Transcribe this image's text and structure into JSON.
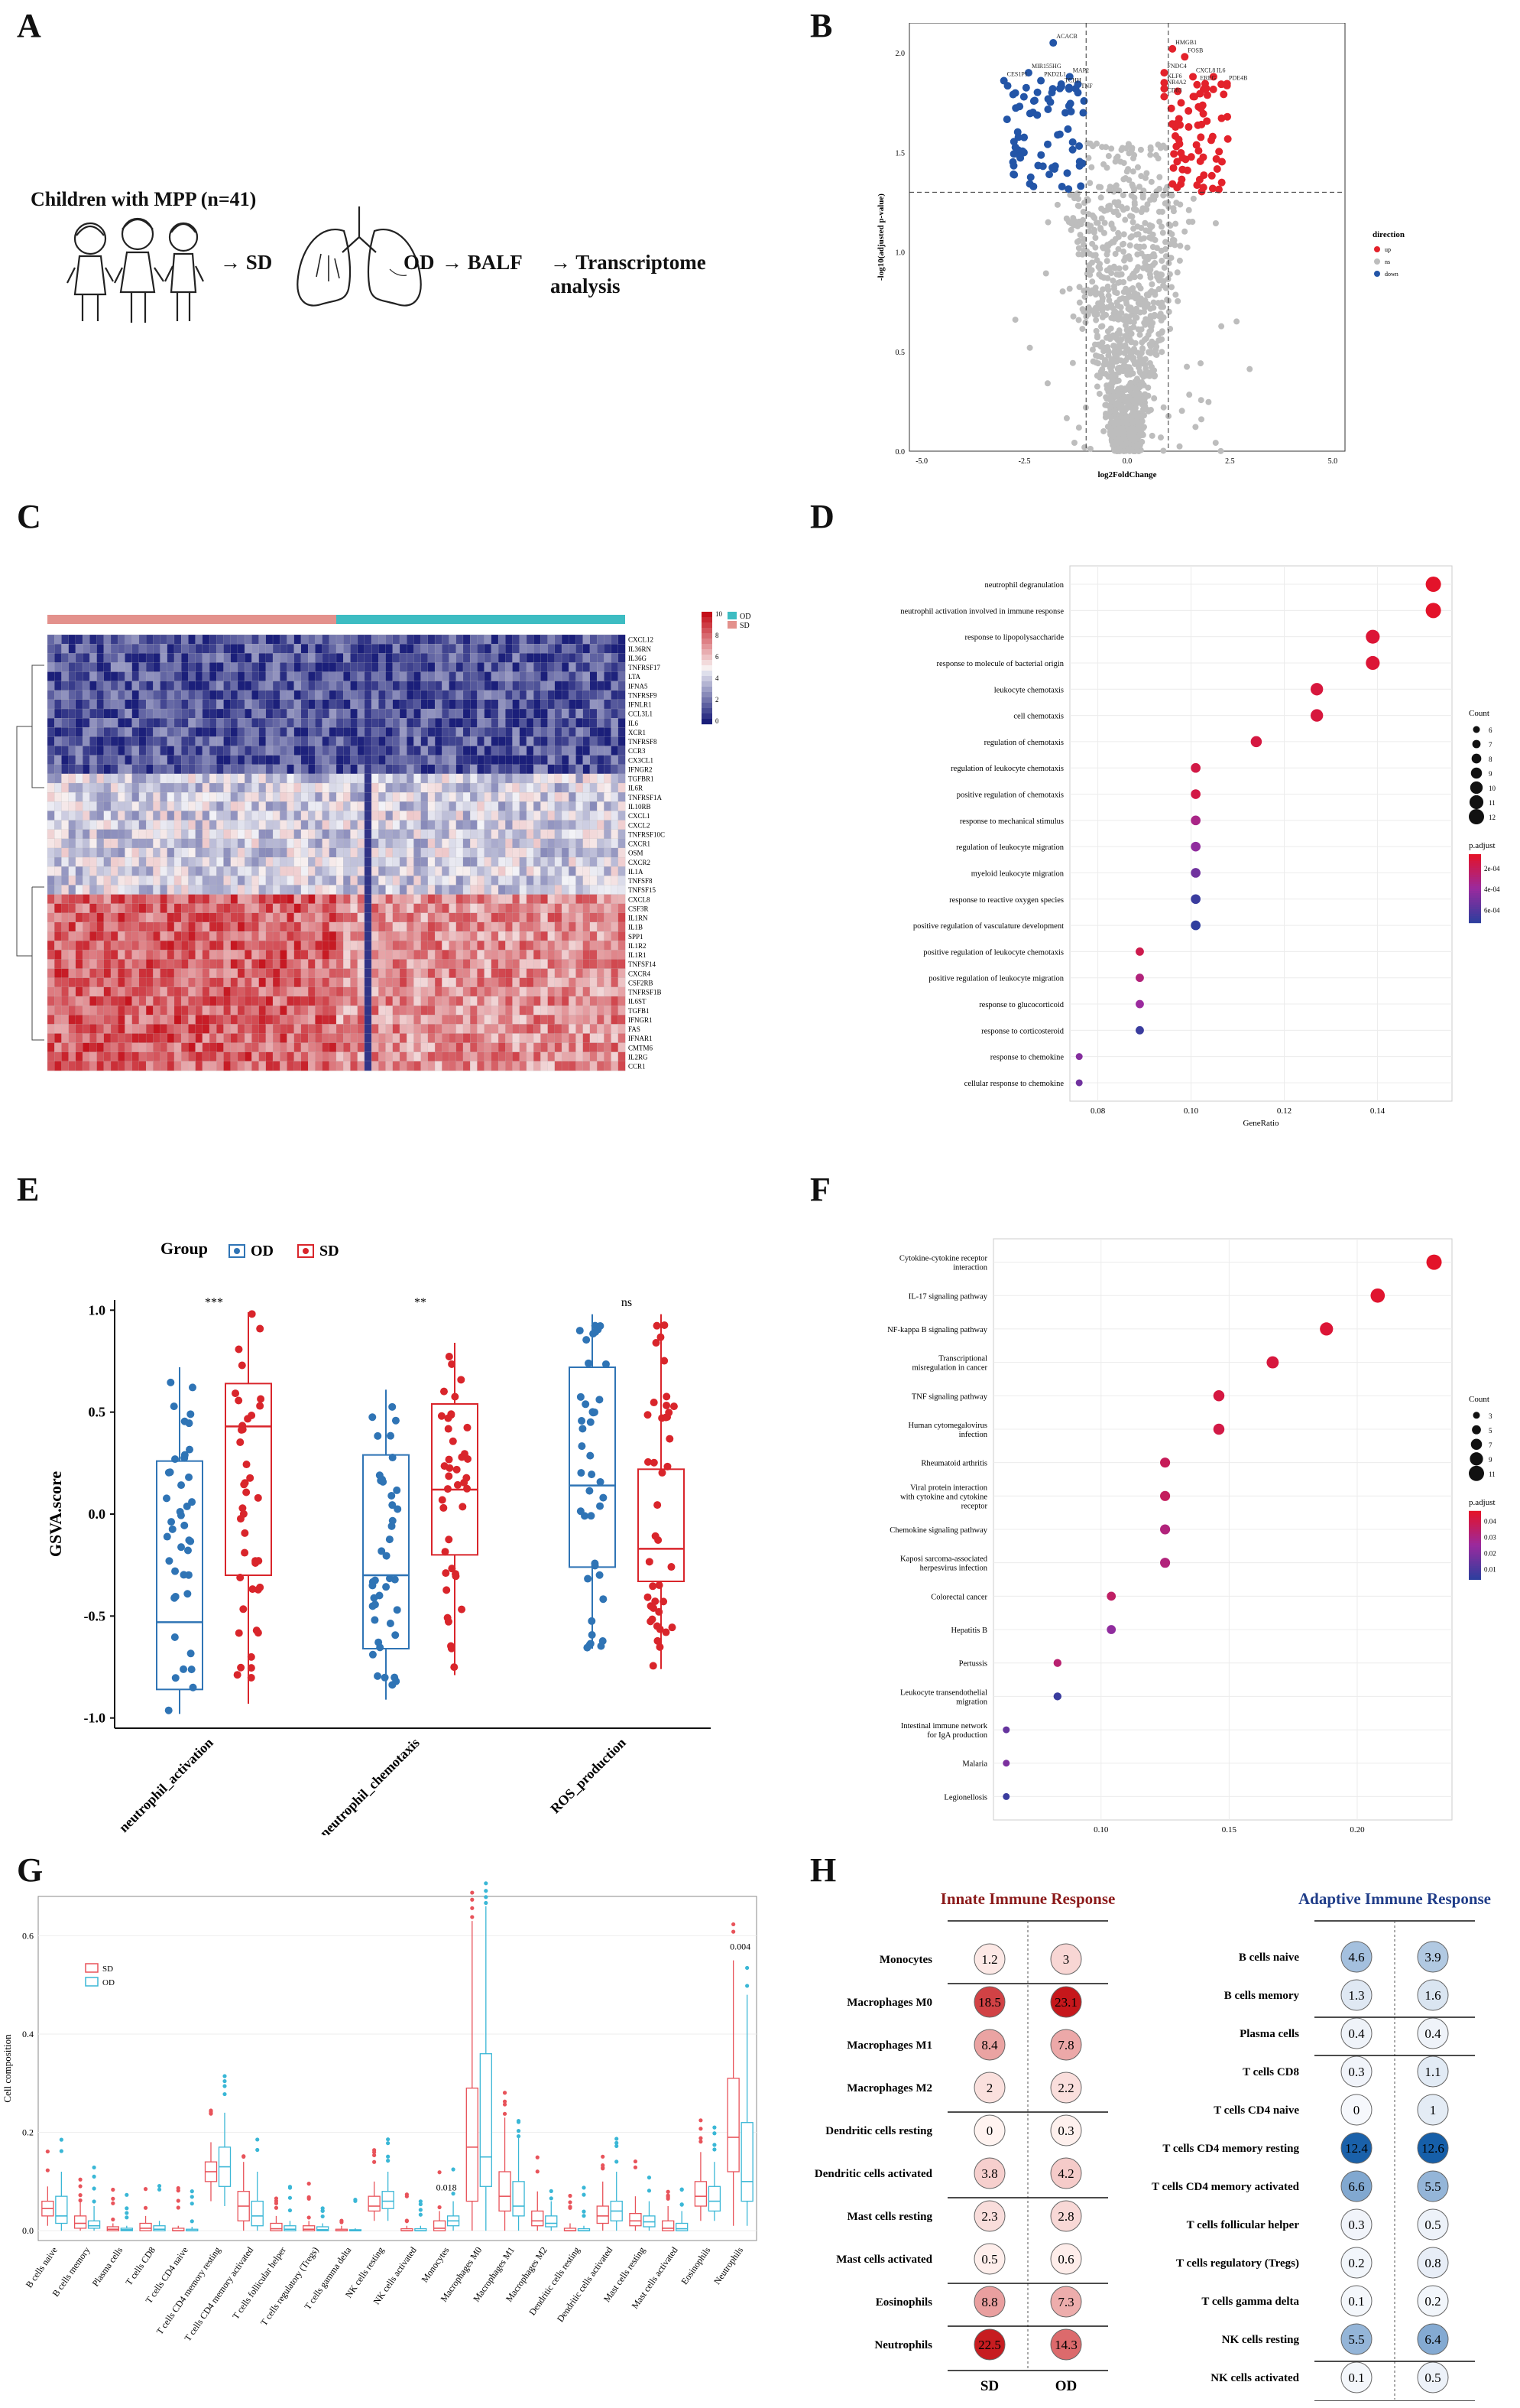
{
  "colors": {
    "up": "#e3222b",
    "down": "#2355a7",
    "ns": "#bdbdbd",
    "sd": "#d9252b",
    "od": "#2f74b5",
    "sd_box": "#e8535a",
    "od_box": "#3ab7d6",
    "innate_title": "#8b1a1a",
    "adaptive_title": "#1f3c88"
  },
  "panels": {
    "A": {
      "label": "A",
      "cohort": "Children with MPP (n=41)",
      "arrow_sd": "→ SD",
      "od": "OD",
      "arrow_balf": "→ BALF",
      "arrow_ta": "→ Transcriptome analysis"
    },
    "B": {
      "label": "B"
    },
    "C": {
      "label": "C"
    },
    "D": {
      "label": "D"
    },
    "E": {
      "label": "E"
    },
    "F": {
      "label": "F"
    },
    "G": {
      "label": "G"
    },
    "H": {
      "label": "H"
    }
  },
  "chart_data": [
    {
      "id": "B",
      "type": "scatter",
      "title": "",
      "xlabel": "log2FoldChange",
      "ylabel": "-log10(adjusted p-value)",
      "xlim": [
        -5.3,
        5.3
      ],
      "ylim": [
        0,
        2.15
      ],
      "xticks": [
        "-5.0",
        "-2.5",
        "0.0",
        "2.5",
        "5.0"
      ],
      "yticks": [
        "0.0",
        "0.5",
        "1.0",
        "1.5",
        "2.0"
      ],
      "thresholds": {
        "x": [
          -1,
          1
        ],
        "y": 1.3
      },
      "legend": {
        "title": "direction",
        "items": [
          "up",
          "ns",
          "down"
        ]
      },
      "labeled_points": [
        {
          "label": "ACACB",
          "x": -1.8,
          "y": 2.05,
          "dir": "down"
        },
        {
          "label": "MIR155HG",
          "x": -2.4,
          "y": 1.9,
          "dir": "down"
        },
        {
          "label": "CES1P1",
          "x": -3.0,
          "y": 1.86,
          "dir": "down"
        },
        {
          "label": "PKD2L1",
          "x": -2.1,
          "y": 1.86,
          "dir": "down"
        },
        {
          "label": "MAP2",
          "x": -1.4,
          "y": 1.88,
          "dir": "down"
        },
        {
          "label": "TCHH",
          "x": -1.6,
          "y": 1.83,
          "dir": "down"
        },
        {
          "label": "TNF",
          "x": -1.2,
          "y": 1.8,
          "dir": "down"
        },
        {
          "label": "FOSB",
          "x": 1.4,
          "y": 1.98,
          "dir": "up"
        },
        {
          "label": "HMGB1",
          "x": 1.1,
          "y": 2.02,
          "dir": "up"
        },
        {
          "label": "FNDC4",
          "x": 0.9,
          "y": 1.9,
          "dir": "up"
        },
        {
          "label": "CXCL8",
          "x": 1.6,
          "y": 1.88,
          "dir": "up"
        },
        {
          "label": "IL6",
          "x": 2.1,
          "y": 1.88,
          "dir": "up"
        },
        {
          "label": "KLF6",
          "x": 0.9,
          "y": 1.85,
          "dir": "up"
        },
        {
          "label": "EREG",
          "x": 1.7,
          "y": 1.84,
          "dir": "up"
        },
        {
          "label": "PDE4B",
          "x": 2.4,
          "y": 1.84,
          "dir": "up"
        },
        {
          "label": "NR4A2",
          "x": 0.9,
          "y": 1.82,
          "dir": "up"
        },
        {
          "label": "CD83",
          "x": 0.9,
          "y": 1.78,
          "dir": "up"
        }
      ]
    },
    {
      "id": "C",
      "type": "heatmap",
      "title": "",
      "genes": [
        "CXCL12",
        "IL36RN",
        "IL36G",
        "TNFRSF17",
        "LTA",
        "IFNA5",
        "TNFRSF9",
        "IFNLR1",
        "CCL3L1",
        "IL6",
        "XCR1",
        "TNFRSF8",
        "CCR3",
        "CX3CL1",
        "IFNGR2",
        "TGFBR1",
        "IL6R",
        "TNFRSF1A",
        "IL10RB",
        "CXCL1",
        "CXCL2",
        "TNFRSF10C",
        "CXCR1",
        "OSM",
        "CXCR2",
        "IL1A",
        "TNFSF8",
        "TNFSF15",
        "CXCL8",
        "CSF3R",
        "IL1RN",
        "IL1B",
        "SPP1",
        "IL1R2",
        "IL1R1",
        "TNFSF14",
        "CXCR4",
        "CSF2RB",
        "TNFRSF1B",
        "IL6ST",
        "TGFB1",
        "IFNGR1",
        "FAS",
        "IFNAR1",
        "CMTM6",
        "IL2RG",
        "CCR1"
      ],
      "groups": [
        "OD",
        "SD"
      ],
      "scale": {
        "min": 0,
        "max": 10,
        "ticks": [
          "10",
          "8",
          "6",
          "4",
          "2",
          "0"
        ]
      }
    },
    {
      "id": "D",
      "type": "scatter",
      "title": "",
      "xlabel": "GeneRatio",
      "ylabel": "",
      "xlim": [
        0.074,
        0.156
      ],
      "xticks": [
        "0.08",
        "0.10",
        "0.12",
        "0.14"
      ],
      "terms": [
        "neutrophil degranulation",
        "neutrophil activation involved in immune response",
        "response to lipopolysaccharide",
        "response to molecule of bacterial origin",
        "leukocyte chemotaxis",
        "cell chemotaxis",
        "regulation of chemotaxis",
        "regulation of leukocyte chemotaxis",
        "positive regulation of chemotaxis",
        "response to mechanical stimulus",
        "regulation of leukocyte migration",
        "myeloid leukocyte migration",
        "response to reactive oxygen species",
        "positive regulation of vasculature development",
        "positive regulation of leukocyte chemotaxis",
        "positive regulation of leukocyte migration",
        "response to glucocorticoid",
        "response to corticosteroid",
        "response to chemokine",
        "cellular response to chemokine"
      ],
      "gene_ratio": [
        0.152,
        0.152,
        0.139,
        0.139,
        0.127,
        0.127,
        0.114,
        0.101,
        0.101,
        0.101,
        0.101,
        0.101,
        0.101,
        0.101,
        0.089,
        0.089,
        0.089,
        0.089,
        0.076,
        0.076
      ],
      "count": [
        12,
        12,
        11,
        11,
        10,
        10,
        9,
        8,
        8,
        8,
        8,
        8,
        8,
        8,
        7,
        7,
        7,
        7,
        6,
        6
      ],
      "p_adjust_rank": [
        0.0,
        0.0,
        0.05,
        0.05,
        0.08,
        0.08,
        0.1,
        0.12,
        0.12,
        0.4,
        0.55,
        0.7,
        0.95,
        1.0,
        0.15,
        0.35,
        0.5,
        0.95,
        0.6,
        0.7
      ],
      "legend_count": {
        "title": "Count",
        "items": [
          "6",
          "7",
          "8",
          "9",
          "10",
          "11",
          "12"
        ]
      },
      "legend_padj": {
        "title": "p.adjust",
        "ticks": [
          "2e-04",
          "4e-04",
          "6e-04"
        ]
      }
    },
    {
      "id": "E",
      "type": "box",
      "title": "",
      "ylabel": "GSVA.score",
      "legend_title": "Group",
      "groups": [
        "OD",
        "SD"
      ],
      "categories": [
        "neutrophil_activation",
        "neutrophil_chemotaxis",
        "ROS_production"
      ],
      "significance": [
        "***",
        "**",
        "ns"
      ],
      "ylim": [
        -1.05,
        1.05
      ],
      "yticks": [
        "1.0",
        "0.5",
        "0.0",
        "-0.5",
        "-1.0"
      ],
      "series": [
        {
          "name": "OD",
          "stats": [
            {
              "min": -0.98,
              "q1": -0.86,
              "median": -0.53,
              "q3": 0.26,
              "max": 0.72
            },
            {
              "min": -0.91,
              "q1": -0.66,
              "median": -0.3,
              "q3": 0.29,
              "max": 0.61
            },
            {
              "min": -0.66,
              "q1": -0.26,
              "median": 0.14,
              "q3": 0.72,
              "max": 0.98
            }
          ]
        },
        {
          "name": "SD",
          "stats": [
            {
              "min": -0.93,
              "q1": -0.3,
              "median": 0.43,
              "q3": 0.64,
              "max": 0.99
            },
            {
              "min": -0.79,
              "q1": -0.2,
              "median": 0.12,
              "q3": 0.54,
              "max": 0.84
            },
            {
              "min": -0.76,
              "q1": -0.33,
              "median": -0.17,
              "q3": 0.22,
              "max": 0.98
            }
          ]
        }
      ]
    },
    {
      "id": "F",
      "type": "scatter",
      "title": "",
      "xlabel": "GeneRatio",
      "xlim": [
        0.058,
        0.237
      ],
      "xticks": [
        "0.10",
        "0.15",
        "0.20"
      ],
      "terms": [
        "Cytokine-cytokine receptor|interaction",
        "IL-17 signaling pathway",
        "NF-kappa B signaling pathway",
        "Transcriptional|misregulation in cancer",
        "TNF signaling pathway",
        "Human cytomegalovirus|infection",
        "Rheumatoid arthritis",
        "Viral protein interaction|with cytokine and cytokine|receptor",
        "Chemokine signaling pathway",
        "Kaposi sarcoma-associated|herpesvirus infection",
        "Colorectal cancer",
        "Hepatitis B",
        "Pertussis",
        "Leukocyte transendothelial|migration",
        "Intestinal immune network|for IgA production",
        "Malaria",
        "Legionellosis"
      ],
      "gene_ratio": [
        0.23,
        0.208,
        0.188,
        0.167,
        0.146,
        0.146,
        0.125,
        0.125,
        0.125,
        0.125,
        0.104,
        0.104,
        0.083,
        0.083,
        0.063,
        0.063,
        0.063
      ],
      "count": [
        11,
        10,
        9,
        8,
        7,
        7,
        6,
        6,
        6,
        6,
        5,
        5,
        4,
        4,
        3,
        3,
        3
      ],
      "p_adjust_rank": [
        0.0,
        0.02,
        0.05,
        0.08,
        0.1,
        0.12,
        0.2,
        0.22,
        0.35,
        0.35,
        0.25,
        0.55,
        0.3,
        0.95,
        0.75,
        0.65,
        0.95
      ],
      "legend_count": {
        "title": "Count",
        "items": [
          "3",
          "5",
          "7",
          "9",
          "11"
        ]
      },
      "legend_padj": {
        "title": "p.adjust",
        "ticks": [
          "0.04",
          "0.03",
          "0.02",
          "0.01"
        ]
      }
    },
    {
      "id": "G",
      "type": "box",
      "title": "",
      "ylabel": "Cell composition",
      "ylim": [
        -0.02,
        0.68
      ],
      "yticks": [
        "0.6",
        "0.4",
        "0.2",
        "0.0"
      ],
      "legend": [
        "SD",
        "OD"
      ],
      "categories": [
        "B cells naive",
        "B cells memory",
        "Plasma cells",
        "T cells CD8",
        "T cells CD4 naive",
        "T cells CD4 memory resting",
        "T cells CD4 memory activated",
        "T cells follicular helper",
        "T cells regulatory (Tregs)",
        "T cells gamma delta",
        "NK cells resting",
        "NK cells activated",
        "Monocytes",
        "Macrophages M0",
        "Macrophages M1",
        "Macrophages M2",
        "Dendritic cells resting",
        "Dendritic cells activated",
        "Mast cells resting",
        "Mast cells activated",
        "Eosinophils",
        "Neutrophils"
      ],
      "annotations": [
        {
          "category": "Monocytes",
          "text": "0.018"
        },
        {
          "category": "Neutrophils",
          "text": "0.004"
        }
      ],
      "series": [
        {
          "name": "SD",
          "stats": [
            [
              0.01,
              0.03,
              0.045,
              0.06,
              0.09
            ],
            [
              0,
              0.005,
              0.015,
              0.03,
              0.06
            ],
            [
              0,
              0,
              0.003,
              0.008,
              0.015
            ],
            [
              0,
              0,
              0.005,
              0.015,
              0.03
            ],
            [
              0,
              0,
              0,
              0.005,
              0.01
            ],
            [
              0.06,
              0.1,
              0.12,
              0.14,
              0.18
            ],
            [
              0,
              0.02,
              0.05,
              0.08,
              0.14
            ],
            [
              0,
              0,
              0.004,
              0.015,
              0.03
            ],
            [
              0,
              0,
              0.003,
              0.01,
              0.02
            ],
            [
              0,
              0,
              0,
              0.003,
              0.01
            ],
            [
              0.02,
              0.04,
              0.05,
              0.07,
              0.1
            ],
            [
              0,
              0,
              0,
              0.004,
              0.01
            ],
            [
              0,
              0,
              0.005,
              0.02,
              0.04
            ],
            [
              0,
              0.06,
              0.17,
              0.29,
              0.63
            ],
            [
              0,
              0.04,
              0.07,
              0.12,
              0.23
            ],
            [
              0,
              0.01,
              0.02,
              0.04,
              0.08
            ],
            [
              0,
              0,
              0,
              0.005,
              0.015
            ],
            [
              0,
              0.015,
              0.03,
              0.05,
              0.1
            ],
            [
              0,
              0.01,
              0.02,
              0.035,
              0.07
            ],
            [
              0,
              0,
              0.005,
              0.02,
              0.05
            ],
            [
              0.02,
              0.05,
              0.07,
              0.1,
              0.16
            ],
            [
              0.01,
              0.12,
              0.19,
              0.31,
              0.55
            ]
          ]
        },
        {
          "name": "OD",
          "stats": [
            [
              0,
              0.015,
              0.03,
              0.07,
              0.12
            ],
            [
              0,
              0.005,
              0.01,
              0.02,
              0.05
            ],
            [
              0,
              0,
              0.002,
              0.005,
              0.01
            ],
            [
              0,
              0,
              0.003,
              0.01,
              0.02
            ],
            [
              0,
              0,
              0,
              0.003,
              0.008
            ],
            [
              0.05,
              0.09,
              0.13,
              0.17,
              0.24
            ],
            [
              0,
              0.01,
              0.03,
              0.06,
              0.12
            ],
            [
              0,
              0,
              0.003,
              0.01,
              0.02
            ],
            [
              0,
              0,
              0.002,
              0.008,
              0.015
            ],
            [
              0,
              0,
              0,
              0.002,
              0.005
            ],
            [
              0.02,
              0.045,
              0.06,
              0.08,
              0.12
            ],
            [
              0,
              0,
              0,
              0.004,
              0.01
            ],
            [
              0,
              0.01,
              0.02,
              0.03,
              0.06
            ],
            [
              0,
              0.09,
              0.15,
              0.36,
              0.66
            ],
            [
              0,
              0.03,
              0.05,
              0.1,
              0.19
            ],
            [
              0,
              0.008,
              0.015,
              0.03,
              0.06
            ],
            [
              0,
              0,
              0,
              0.004,
              0.01
            ],
            [
              0,
              0.02,
              0.04,
              0.06,
              0.12
            ],
            [
              0,
              0.008,
              0.018,
              0.03,
              0.06
            ],
            [
              0,
              0,
              0.004,
              0.015,
              0.04
            ],
            [
              0.02,
              0.04,
              0.06,
              0.09,
              0.14
            ],
            [
              0.01,
              0.06,
              0.1,
              0.22,
              0.48
            ]
          ]
        }
      ]
    }
  ],
  "immune": {
    "innate_title": "Innate Immune Response",
    "adaptive_title": "Adaptive Immune Response",
    "col_labels": [
      "SD",
      "OD"
    ],
    "innate": [
      {
        "name": "Monocytes",
        "sd": "1.2",
        "od": "3"
      },
      {
        "name": "Macrophages M0",
        "sd": "18.5",
        "od": "23.1"
      },
      {
        "name": "Macrophages M1",
        "sd": "8.4",
        "od": "7.8"
      },
      {
        "name": "Macrophages M2",
        "sd": "2",
        "od": "2.2"
      },
      {
        "name": "Dendritic cells resting",
        "sd": "0",
        "od": "0.3"
      },
      {
        "name": "Dendritic cells activated",
        "sd": "3.8",
        "od": "4.2"
      },
      {
        "name": "Mast cells resting",
        "sd": "2.3",
        "od": "2.8"
      },
      {
        "name": "Mast cells activated",
        "sd": "0.5",
        "od": "0.6"
      },
      {
        "name": "Eosinophils",
        "sd": "8.8",
        "od": "7.3"
      },
      {
        "name": "Neutrophils",
        "sd": "22.5",
        "od": "14.3"
      }
    ],
    "adaptive": [
      {
        "name": "B cells naive",
        "sd": "4.6",
        "od": "3.9"
      },
      {
        "name": "B cells memory",
        "sd": "1.3",
        "od": "1.6"
      },
      {
        "name": "Plasma cells",
        "sd": "0.4",
        "od": "0.4"
      },
      {
        "name": "T cells CD8",
        "sd": "0.3",
        "od": "1.1"
      },
      {
        "name": "T cells CD4 naive",
        "sd": "0",
        "od": "1"
      },
      {
        "name": "T cells CD4 memory resting",
        "sd": "12.4",
        "od": "12.6"
      },
      {
        "name": "T cells CD4 memory activated",
        "sd": "6.6",
        "od": "5.5"
      },
      {
        "name": "T cells follicular helper",
        "sd": "0.3",
        "od": "0.5"
      },
      {
        "name": "T cells regulatory (Tregs)",
        "sd": "0.2",
        "od": "0.8"
      },
      {
        "name": "T cells gamma delta",
        "sd": "0.1",
        "od": "0.2"
      },
      {
        "name": "NK cells resting",
        "sd": "5.5",
        "od": "6.4"
      },
      {
        "name": "NK cells activated",
        "sd": "0.1",
        "od": "0.5"
      }
    ]
  }
}
